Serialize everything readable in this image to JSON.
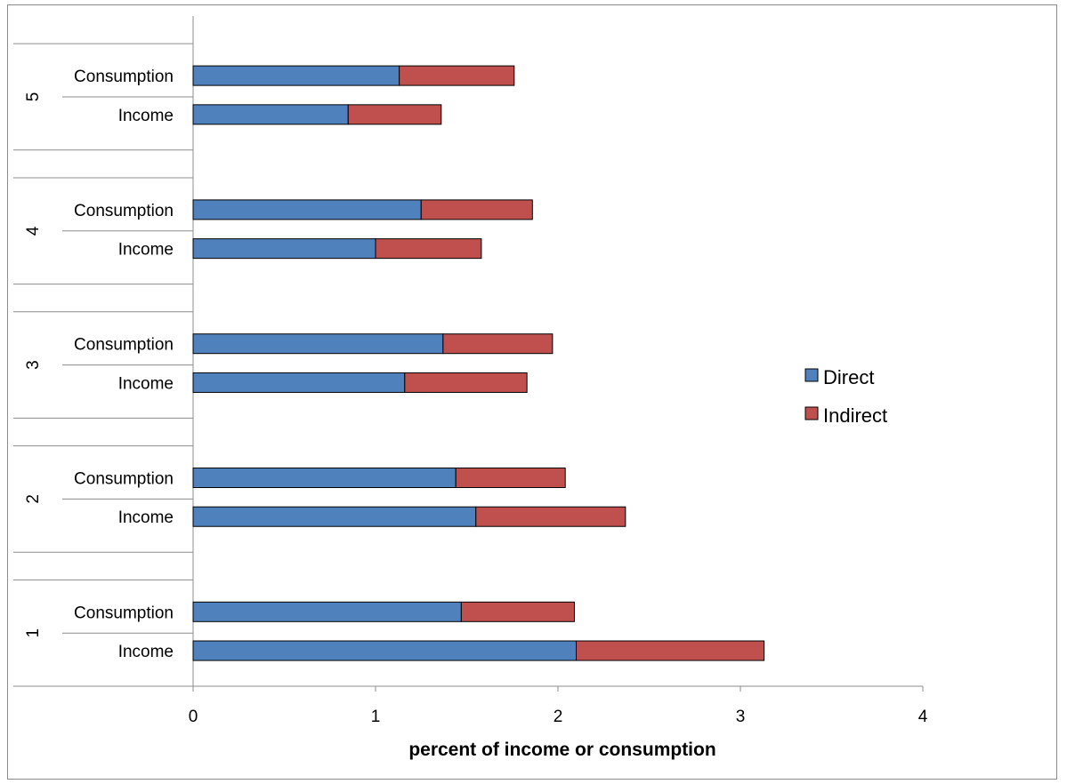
{
  "chart_data": {
    "type": "bar",
    "orientation": "horizontal",
    "stacked": true,
    "title": "",
    "xlabel": "percent of income or consumption",
    "ylabel": "",
    "xlim": [
      0,
      4
    ],
    "x_ticks": [
      "0",
      "1",
      "2",
      "3",
      "4"
    ],
    "grid": false,
    "legend_position": "right",
    "groups": [
      "1",
      "2",
      "3",
      "4",
      "5"
    ],
    "categories": [
      "Income",
      "Consumption"
    ],
    "bars": [
      {
        "group": "1",
        "category": "Income",
        "values": [
          2.1,
          1.03
        ]
      },
      {
        "group": "1",
        "category": "Consumption",
        "values": [
          1.47,
          0.62
        ]
      },
      {
        "group": "2",
        "category": "Income",
        "values": [
          1.55,
          0.82
        ]
      },
      {
        "group": "2",
        "category": "Consumption",
        "values": [
          1.44,
          0.6
        ]
      },
      {
        "group": "3",
        "category": "Income",
        "values": [
          1.16,
          0.67
        ]
      },
      {
        "group": "3",
        "category": "Consumption",
        "values": [
          1.37,
          0.6
        ]
      },
      {
        "group": "4",
        "category": "Income",
        "values": [
          1.0,
          0.58
        ]
      },
      {
        "group": "4",
        "category": "Consumption",
        "values": [
          1.25,
          0.61
        ]
      },
      {
        "group": "5",
        "category": "Income",
        "values": [
          0.85,
          0.51
        ]
      },
      {
        "group": "5",
        "category": "Consumption",
        "values": [
          1.13,
          0.63
        ]
      }
    ],
    "series": [
      {
        "name": "Direct",
        "color": "#4F81BD",
        "border": "#385D8A"
      },
      {
        "name": "Indirect",
        "color": "#C0504D",
        "border": "#8C3836"
      }
    ]
  }
}
